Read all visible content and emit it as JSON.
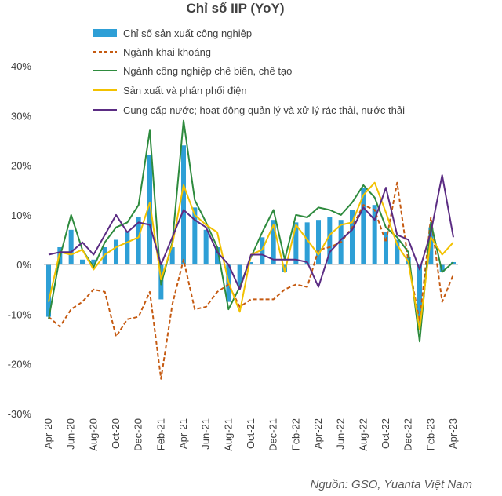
{
  "chart_data": {
    "type": "bar",
    "title": "Chỉ số IIP (YoY)",
    "source": "Nguồn: GSO, Yuanta Việt Nam",
    "ylim": [
      -30,
      40
    ],
    "yticks": [
      40,
      30,
      20,
      10,
      0,
      -10,
      -20,
      -30
    ],
    "ytick_labels": [
      "40%",
      "30%",
      "20%",
      "10%",
      "0%",
      "-10%",
      "-20%",
      "-30%"
    ],
    "xtick_labels": [
      "Apr-20",
      "Jun-20",
      "Aug-20",
      "Oct-20",
      "Dec-20",
      "Feb-21",
      "Apr-21",
      "Jun-21",
      "Aug-21",
      "Oct-21",
      "Dec-21",
      "Feb-22",
      "Apr-22",
      "Jun-22",
      "Aug-22",
      "Oct-22",
      "Dec-22",
      "Feb-23",
      "Apr-23"
    ],
    "categories": [
      "Apr-20",
      "May-20",
      "Jun-20",
      "Jul-20",
      "Aug-20",
      "Sep-20",
      "Oct-20",
      "Nov-20",
      "Dec-20",
      "Jan-21",
      "Feb-21",
      "Mar-21",
      "Apr-21",
      "May-21",
      "Jun-21",
      "Jul-21",
      "Aug-21",
      "Sep-21",
      "Oct-21",
      "Nov-21",
      "Dec-21",
      "Jan-22",
      "Feb-22",
      "Mar-22",
      "Apr-22",
      "May-22",
      "Jun-22",
      "Jul-22",
      "Aug-22",
      "Sep-22",
      "Oct-22",
      "Nov-22",
      "Dec-22",
      "Jan-23",
      "Feb-23",
      "Mar-23",
      "Apr-23"
    ],
    "series": [
      {
        "name": "Chỉ số sản xuất công nghiệp",
        "kind": "bar",
        "color": "#2E9FD6",
        "values": [
          -10.5,
          3.5,
          7.0,
          1.0,
          1.0,
          3.5,
          5.0,
          6.5,
          9.5,
          22.0,
          -7.0,
          3.5,
          24.0,
          11.5,
          7.0,
          3.5,
          -7.5,
          -4.5,
          0.5,
          5.5,
          9.0,
          -1.5,
          8.5,
          8.5,
          9.0,
          9.5,
          9.0,
          11.0,
          15.5,
          12.0,
          6.5,
          5.0,
          1.5,
          -12.5,
          7.5,
          -1.5,
          0.5
        ]
      },
      {
        "name": "Ngành khai khoáng",
        "kind": "dashed",
        "color": "#C55A11",
        "values": [
          -10.5,
          -12.5,
          -9.0,
          -7.5,
          -5.0,
          -5.5,
          -14.5,
          -11.0,
          -10.5,
          -5.5,
          -23.0,
          -8.0,
          1.0,
          -9.0,
          -8.5,
          -5.5,
          -4.0,
          -8.5,
          -7.0,
          -7.0,
          -7.0,
          -5.0,
          -4.0,
          -4.5,
          3.0,
          3.5,
          4.5,
          7.5,
          12.0,
          11.0,
          4.5,
          16.5,
          0.5,
          -11.5,
          9.5,
          -7.5,
          -2.0
        ]
      },
      {
        "name": "Ngành công nghiệp chế biến, chế tạo",
        "kind": "line",
        "color": "#2E8B3E",
        "values": [
          -11.0,
          1.5,
          10.0,
          3.0,
          -0.5,
          4.5,
          7.5,
          8.5,
          12.0,
          27.0,
          -4.0,
          4.5,
          29.0,
          13.0,
          8.5,
          3.5,
          -9.0,
          -4.5,
          1.5,
          6.5,
          11.0,
          1.0,
          10.0,
          9.5,
          11.5,
          11.0,
          10.0,
          12.5,
          16.0,
          13.5,
          7.5,
          5.5,
          2.5,
          -15.5,
          8.5,
          -1.5,
          0.5
        ]
      },
      {
        "name": "Sản xuất và phân phối điện",
        "kind": "line",
        "color": "#F2C100",
        "values": [
          -7.5,
          2.5,
          2.0,
          3.0,
          -1.0,
          2.0,
          3.5,
          4.5,
          5.5,
          12.5,
          -3.0,
          4.0,
          16.0,
          10.0,
          8.0,
          6.5,
          -3.5,
          -9.5,
          2.0,
          3.0,
          8.0,
          -1.5,
          8.0,
          5.0,
          2.0,
          6.0,
          8.0,
          8.5,
          14.0,
          16.5,
          10.5,
          4.0,
          0.5,
          -13.0,
          5.5,
          2.0,
          4.5
        ]
      },
      {
        "name": "Cung cấp nước; hoạt động quản lý và xử lý rác thải, nước thải",
        "kind": "line",
        "color": "#5B2C83",
        "values": [
          2.0,
          2.5,
          2.5,
          4.5,
          2.0,
          6.0,
          10.0,
          6.5,
          8.5,
          8.0,
          0.0,
          5.5,
          11.0,
          9.0,
          7.5,
          2.5,
          0.0,
          -5.0,
          2.0,
          2.0,
          1.0,
          1.0,
          1.0,
          0.5,
          -4.5,
          2.5,
          5.0,
          7.0,
          11.5,
          9.0,
          15.5,
          6.0,
          5.0,
          -1.0,
          6.5,
          18.0,
          5.5
        ]
      }
    ]
  }
}
